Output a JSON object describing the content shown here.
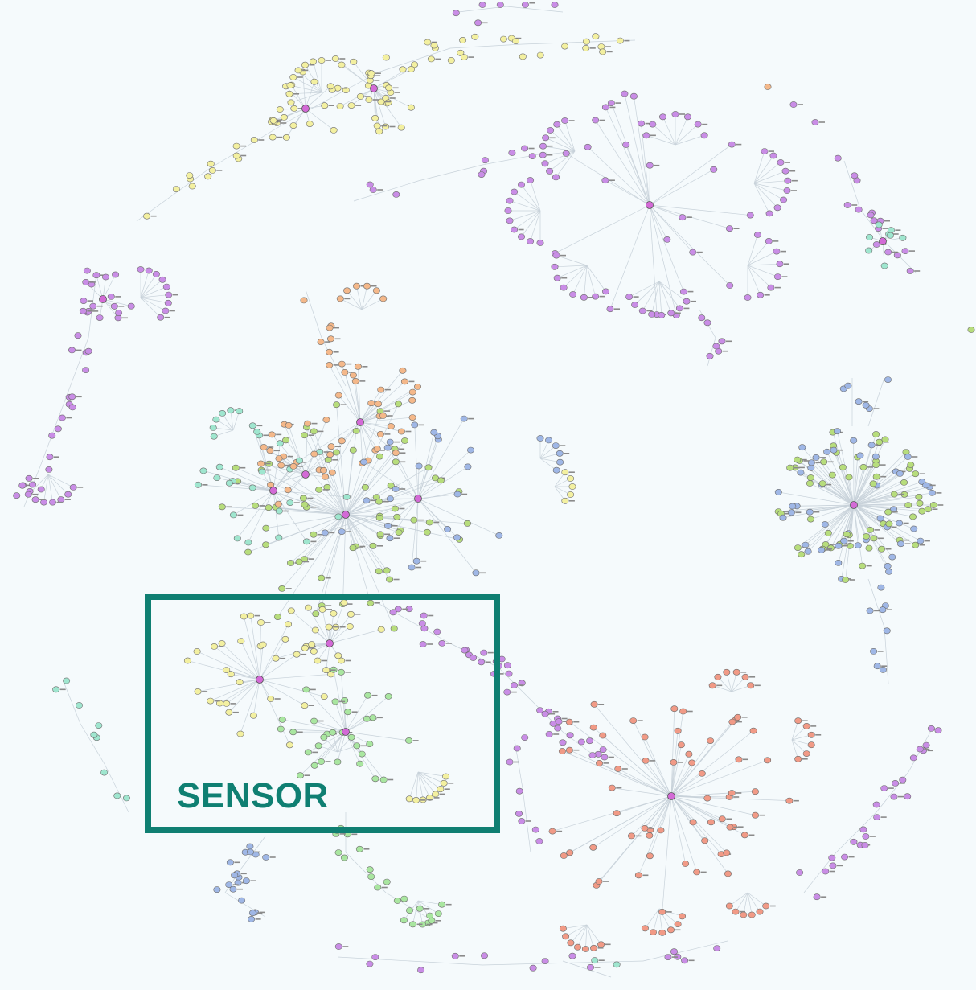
{
  "highlight": {
    "label": "SENSOR"
  },
  "palette": {
    "background": "#f5fafc",
    "edge": "#c8d2da",
    "hub": "#d36ad6",
    "highlight_border": "#0f7f72",
    "clusters": {
      "yellow": "#f3f0a0",
      "violet": "#c98de6",
      "orange": "#f4b88a",
      "green": "#b7dd7c",
      "mint": "#9fe6cf",
      "blue": "#9fb7e6",
      "salmon": "#f19a86",
      "light_green": "#a9e6a0"
    },
    "node_stroke": "#6d6d6d"
  }
}
